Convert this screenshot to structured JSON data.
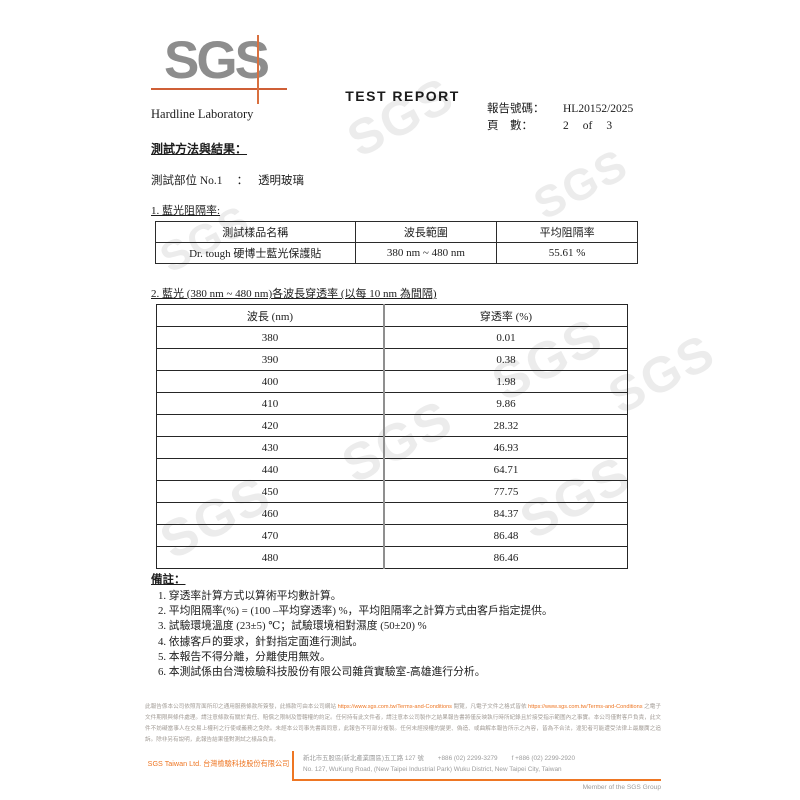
{
  "watermark": "SGS",
  "header": {
    "logo_text": "SGS",
    "title": "TEST REPORT",
    "lab_name": "Hardline Laboratory",
    "report_no_label": "報告號碼：",
    "report_no": "HL20152/2025",
    "page_label": "頁　數：",
    "page_current": "2",
    "page_of": "of",
    "page_total": "3"
  },
  "section": {
    "method_results_heading": "測試方法與結果：",
    "test_part_label": "測試部位 No.1",
    "test_part_colon": "：",
    "test_part_value": "透明玻璃"
  },
  "table1": {
    "caption": "1. 藍光阻隔率:",
    "headers": [
      "測試樣品名稱",
      "波長範圍",
      "平均阻隔率"
    ],
    "row": [
      "Dr. tough 硬博士藍光保護貼",
      "380 nm ~ 480 nm",
      "55.61 %"
    ]
  },
  "table2": {
    "caption": "2. 藍光 (380 nm ~ 480 nm)各波長穿透率 (以每 10 nm 為間隔)",
    "headers": [
      "波長 (nm)",
      "穿透率 (%)"
    ],
    "rows": [
      [
        "380",
        "0.01"
      ],
      [
        "390",
        "0.38"
      ],
      [
        "400",
        "1.98"
      ],
      [
        "410",
        "9.86"
      ],
      [
        "420",
        "28.32"
      ],
      [
        "430",
        "46.93"
      ],
      [
        "440",
        "64.71"
      ],
      [
        "450",
        "77.75"
      ],
      [
        "460",
        "84.37"
      ],
      [
        "470",
        "86.48"
      ],
      [
        "480",
        "86.46"
      ]
    ]
  },
  "notes": {
    "heading": "備註：",
    "items": [
      "1. 穿透率計算方式以算術平均數計算。",
      "2. 平均阻隔率(%) = (100 –平均穿透率) %，平均阻隔率之計算方式由客戶指定提供。",
      "3. 試驗環境溫度 (23±5) ℃；試驗環境相對濕度 (50±20) %",
      "4. 依據客戶的要求，針對指定面進行測試。",
      "5. 本報告不得分離，分離使用無效。",
      "6. 本測試係由台灣檢驗科技股份有限公司雜貨實驗室-高雄進行分析。"
    ]
  },
  "footer": {
    "disclaimer_part1": "此報告係本公司依照背面所印之通用服務條款所簽發，此條款可由本公司網站 ",
    "disclaimer_link1": "https://www.sgs.com.tw/Terms-and-Conditions",
    "disclaimer_part2": " 閱覽，凡電子文件之格式皆依 ",
    "disclaimer_link2": "https://www.sgs.com.tw/Terms-and-Conditions",
    "disclaimer_part3": " 之電子文件期限與條件處理。請注意條款有關於責任、賠償之限制及管轄權的約定。任何持有此文件者，請注意本公司製作之結果報告書將僅反映執行時所紀錄且於接受指示範圍內之事實。本公司僅對客戶負責，此文件不妨礙當事人在交易上權利之行使或義務之免除。未經本公司事先書面同意，此報告不可部分複製。任何未經授權的變更、偽造、或曲解本報告所示之內容，皆為不合法，違犯者可能遭受法律上最嚴厲之追訴。除非另有說明，此報告結果僅對測試之樣品負責。",
    "company": "SGS Taiwan Ltd. 台灣檢驗科技股份有限公司",
    "address_zh": "新北市五股區(新北產業園區)五工路 127 號",
    "phone": "+886 (02) 2299-3279",
    "fax": "f +886 (02) 2299-2920",
    "address_en": "No. 127, WuKung Road, (New Taipei Industrial Park) Wuku District, New Taipei City, Taiwan",
    "member": "Member of the SGS Group"
  }
}
